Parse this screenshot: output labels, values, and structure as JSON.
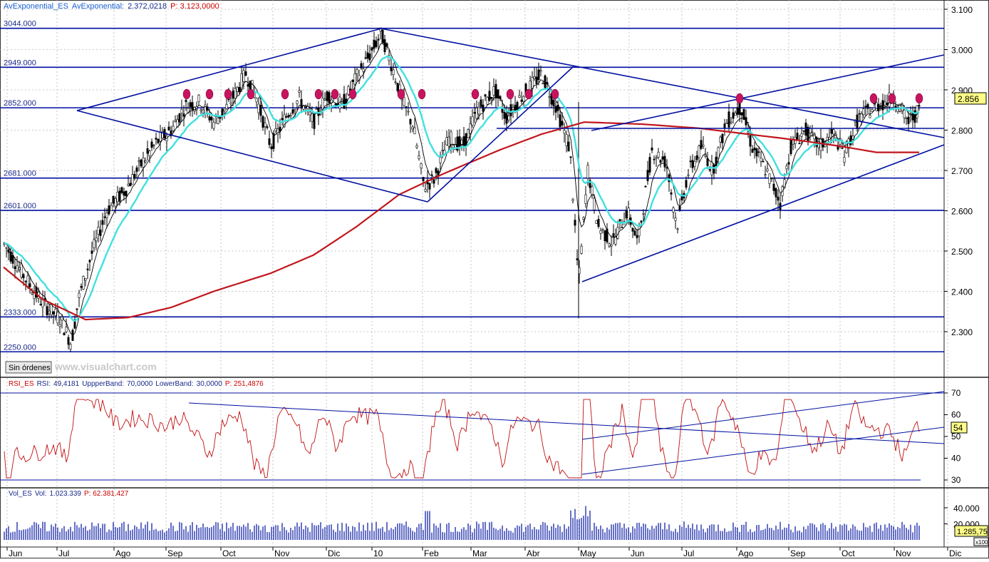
{
  "panels": {
    "price": {
      "header": [
        {
          "text": "AvExponential_ES",
          "color": "#1a5fd1"
        },
        {
          "text": "AvExponential:",
          "color": "#1a5fd1"
        },
        {
          "text": "2.372,0218",
          "color": "#1a2a8a"
        },
        {
          "text": "P: 3.123,0000",
          "color": "#cc0000"
        }
      ],
      "orders_button": "Sin órdenes",
      "watermark": "www.visualchart.com",
      "last_price": "2.856"
    },
    "rsi": {
      "header": [
        {
          "text": "RSI_ES",
          "color": "#cc0000"
        },
        {
          "text": "RSI:",
          "color": "#1a2a8a"
        },
        {
          "text": "49,4181",
          "color": "#1a2a8a"
        },
        {
          "text": "UppperBand:",
          "color": "#1a2a8a"
        },
        {
          "text": "70,0000",
          "color": "#1a2a8a"
        },
        {
          "text": "LowerBand:",
          "color": "#1a2a8a"
        },
        {
          "text": "30,0000",
          "color": "#1a2a8a"
        },
        {
          "text": "P: 251,4876",
          "color": "#cc0000"
        }
      ],
      "last_value": "54"
    },
    "volume": {
      "header": [
        {
          "text": "Vol_ES",
          "color": "#1a2a8a"
        },
        {
          "text": "Vol:",
          "color": "#1a2a8a"
        },
        {
          "text": "1.023.339",
          "color": "#1a2a8a"
        },
        {
          "text": "P: 62.381.427",
          "color": "#cc0000"
        }
      ],
      "last_value": "1.285,75",
      "scale_note": "x100"
    }
  },
  "chart_data": [
    {
      "type": "candlestick",
      "title": "ES",
      "ylim": [
        2230,
        3160
      ],
      "yticks": [
        "2.300",
        "2.400",
        "2.500",
        "2.600",
        "2.700",
        "2.800",
        "2.900",
        "3.000",
        "3.100"
      ],
      "ytick_values": [
        2300,
        2400,
        2500,
        2600,
        2700,
        2800,
        2900,
        3000,
        3100
      ],
      "x_categories": [
        "Jun",
        "Jul",
        "Ago",
        "Sep",
        "Oct",
        "Nov",
        "Dic",
        "10",
        "Feb",
        "Mar",
        "Abr",
        "May",
        "Jun",
        "Jul",
        "Ago",
        "Sep",
        "Oct",
        "Nov",
        "Dic"
      ],
      "horizontal_levels": [
        {
          "label": "3044.000",
          "value": 3044
        },
        {
          "label": "2949.000",
          "value": 2949
        },
        {
          "label": "2852.000",
          "value": 2852
        },
        {
          "label": "2681.000",
          "value": 2681
        },
        {
          "label": "2601.000",
          "value": 2601
        },
        {
          "label": "2333.000",
          "value": 2333
        },
        {
          "label": "2250.000",
          "value": 2250
        }
      ],
      "series": [
        {
          "name": "AvExponential",
          "color": "#ccd0ff"
        },
        {
          "name": "AvExponential (medium)",
          "color": "#40e0e0"
        },
        {
          "name": "AvExponential (long)",
          "color": "#c0161c"
        }
      ],
      "colors": {
        "line": "#0010a0",
        "candle": "#000000",
        "marker": "#c8145e",
        "grid": "#b8b8b8"
      }
    },
    {
      "type": "line",
      "title": "RSI_ES",
      "ylim": [
        25,
        73
      ],
      "yticks": [
        "30",
        "40",
        "50",
        "60",
        "70"
      ],
      "ytick_values": [
        30,
        40,
        50,
        60,
        70
      ],
      "upper_band": 70,
      "lower_band": 30,
      "current": 49.4181,
      "colors": {
        "line": "#c01010",
        "band": "#0010a0"
      }
    },
    {
      "type": "bar",
      "title": "Vol_ES",
      "ylim": [
        0,
        48000
      ],
      "yticks": [
        "20.000",
        "40.000"
      ],
      "ytick_values": [
        20000,
        40000
      ],
      "current": 1023339,
      "colors": {
        "bar": "#0010a0"
      }
    }
  ]
}
